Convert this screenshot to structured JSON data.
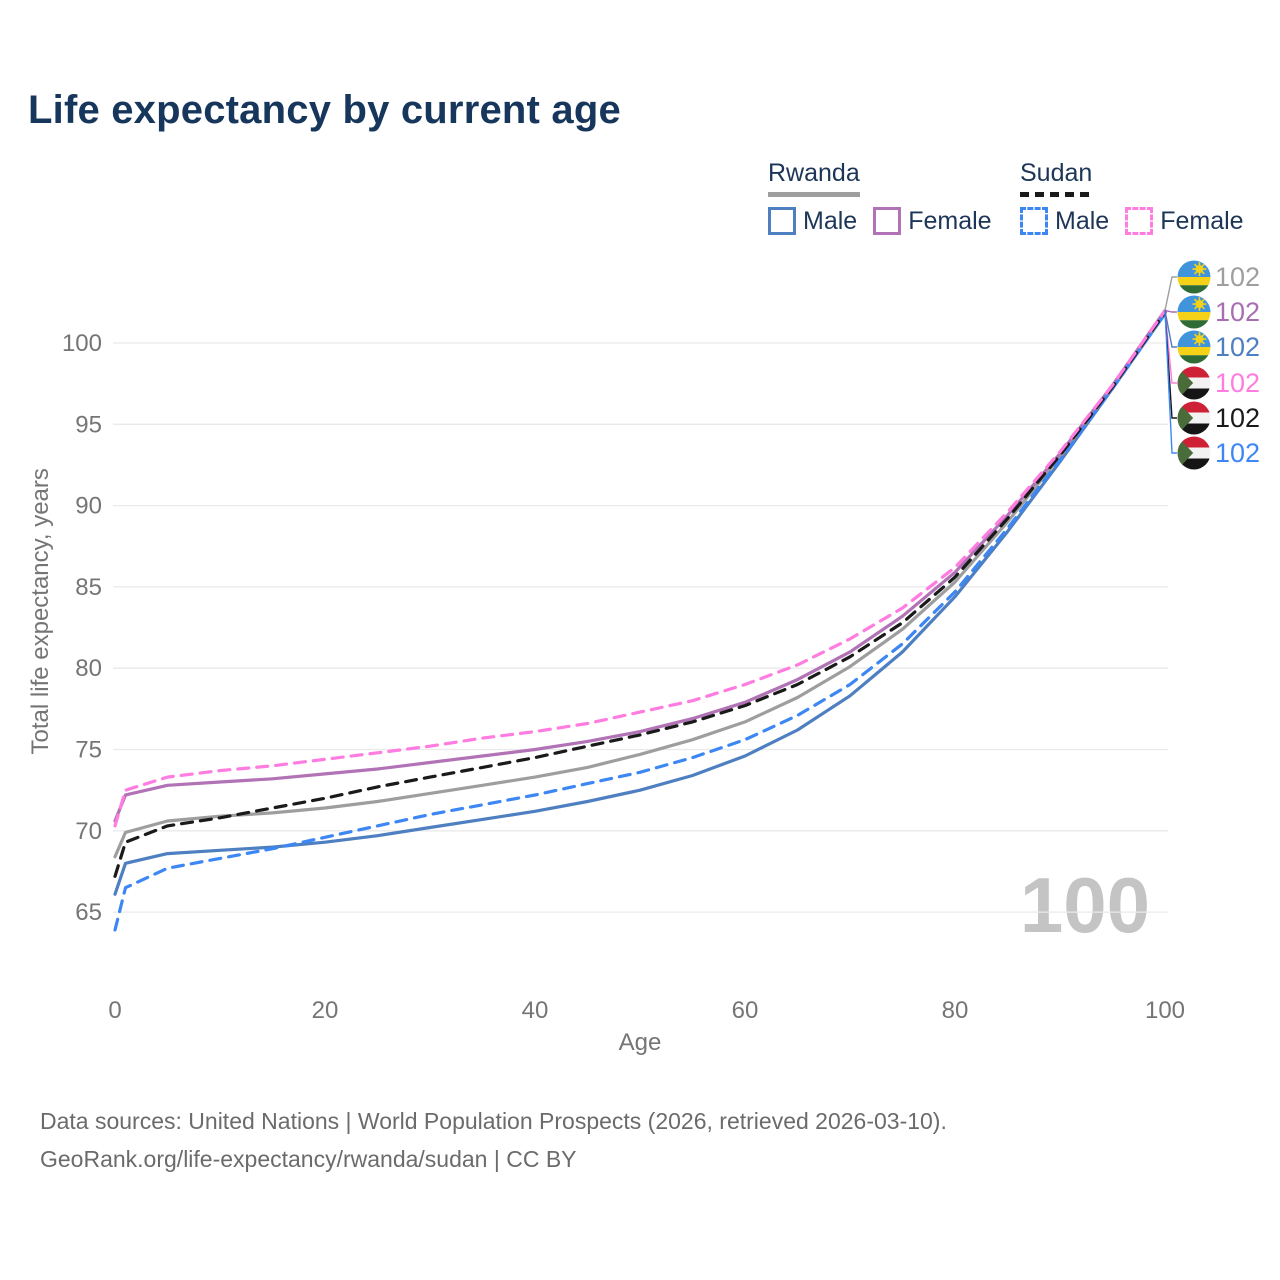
{
  "header": {
    "title": "Life expectancy by current age"
  },
  "legend": {
    "groups": [
      {
        "label": "Rwanda",
        "line_style": "solid",
        "underline_color": "#9e9e9e",
        "items": [
          {
            "label": "Male",
            "color": "#4e7fc1",
            "dashed": false
          },
          {
            "label": "Female",
            "color": "#b172b6",
            "dashed": false
          }
        ]
      },
      {
        "label": "Sudan",
        "line_style": "dashed",
        "underline_color": "#1a1a1a",
        "items": [
          {
            "label": "Male",
            "color": "#3d87f5",
            "dashed": true
          },
          {
            "label": "Female",
            "color": "#ff7ce0",
            "dashed": true
          }
        ]
      }
    ]
  },
  "chart_data": {
    "type": "line",
    "title": "Life expectancy by current age",
    "xlabel": "Age",
    "ylabel": "Total life expectancy, years",
    "xlim": [
      0,
      100
    ],
    "ylim": [
      63,
      103
    ],
    "x_ticks": [
      0,
      20,
      40,
      60,
      80,
      100
    ],
    "y_ticks": [
      65,
      70,
      75,
      80,
      85,
      90,
      95,
      100
    ],
    "grid": "horizontal",
    "legend_position": "top-right",
    "x": [
      0,
      1,
      5,
      10,
      15,
      20,
      25,
      30,
      35,
      40,
      45,
      50,
      55,
      60,
      65,
      70,
      75,
      80,
      85,
      90,
      95,
      100
    ],
    "series": [
      {
        "name": "Rwanda Male",
        "country": "Rwanda",
        "sex": "male",
        "color": "#4e7fc1",
        "dashed": false,
        "values": [
          66.1,
          68.0,
          68.6,
          68.8,
          69.0,
          69.3,
          69.7,
          70.2,
          70.7,
          71.2,
          71.8,
          72.5,
          73.4,
          74.6,
          76.2,
          78.3,
          81.0,
          84.4,
          88.4,
          92.7,
          97.2,
          101.8
        ]
      },
      {
        "name": "Rwanda Total",
        "country": "Rwanda",
        "sex": "total",
        "color": "#9e9e9e",
        "dashed": false,
        "values": [
          68.4,
          69.9,
          70.6,
          70.9,
          71.1,
          71.4,
          71.8,
          72.3,
          72.8,
          73.3,
          73.9,
          74.7,
          75.6,
          76.7,
          78.2,
          80.1,
          82.4,
          85.3,
          89.0,
          93.0,
          97.3,
          101.9
        ]
      },
      {
        "name": "Rwanda Female",
        "country": "Rwanda",
        "sex": "female",
        "color": "#b172b6",
        "dashed": false,
        "values": [
          70.6,
          72.2,
          72.8,
          73.0,
          73.2,
          73.5,
          73.8,
          74.2,
          74.6,
          75.0,
          75.5,
          76.1,
          76.9,
          77.9,
          79.3,
          81.0,
          83.2,
          85.9,
          89.4,
          93.2,
          97.4,
          102.0
        ]
      },
      {
        "name": "Sudan Male",
        "country": "Sudan",
        "sex": "male",
        "color": "#3d87f5",
        "dashed": true,
        "values": [
          63.9,
          66.5,
          67.7,
          68.3,
          68.9,
          69.6,
          70.3,
          71.0,
          71.6,
          72.2,
          72.9,
          73.6,
          74.5,
          75.6,
          77.1,
          79.0,
          81.5,
          84.7,
          88.6,
          92.8,
          97.2,
          101.8
        ]
      },
      {
        "name": "Sudan Total",
        "country": "Sudan",
        "sex": "total",
        "color": "#1a1a1a",
        "dashed": true,
        "values": [
          67.2,
          69.3,
          70.3,
          70.8,
          71.4,
          72.0,
          72.7,
          73.3,
          73.9,
          74.5,
          75.2,
          75.9,
          76.7,
          77.7,
          79.0,
          80.7,
          82.8,
          85.6,
          89.2,
          93.1,
          97.3,
          101.9
        ]
      },
      {
        "name": "Sudan Female",
        "country": "Sudan",
        "sex": "female",
        "color": "#ff7ce0",
        "dashed": true,
        "values": [
          70.3,
          72.5,
          73.3,
          73.7,
          74.0,
          74.4,
          74.8,
          75.2,
          75.7,
          76.1,
          76.6,
          77.3,
          78.0,
          79.0,
          80.2,
          81.8,
          83.7,
          86.2,
          89.6,
          93.3,
          97.4,
          102.0
        ]
      }
    ],
    "end_labels": [
      {
        "flag": "rwanda",
        "value": "102",
        "color": "#9e9e9e",
        "series": "Rwanda Total"
      },
      {
        "flag": "rwanda",
        "value": "102",
        "color": "#a86db3",
        "series": "Rwanda Female"
      },
      {
        "flag": "rwanda",
        "value": "102",
        "color": "#4e7fc1",
        "series": "Rwanda Male"
      },
      {
        "flag": "sudan",
        "value": "102",
        "color": "#ff7ce0",
        "series": "Sudan Female"
      },
      {
        "flag": "sudan",
        "value": "102",
        "color": "#1a1a1a",
        "series": "Sudan Total"
      },
      {
        "flag": "sudan",
        "value": "102",
        "color": "#3d87f5",
        "series": "Sudan Male"
      }
    ],
    "watermark": "100"
  },
  "footer": {
    "line1": "Data sources: United Nations | World Population Prospects (2026, retrieved 2026-03-10).",
    "line2": "GeoRank.org/life-expectancy/rwanda/sudan | CC BY"
  }
}
